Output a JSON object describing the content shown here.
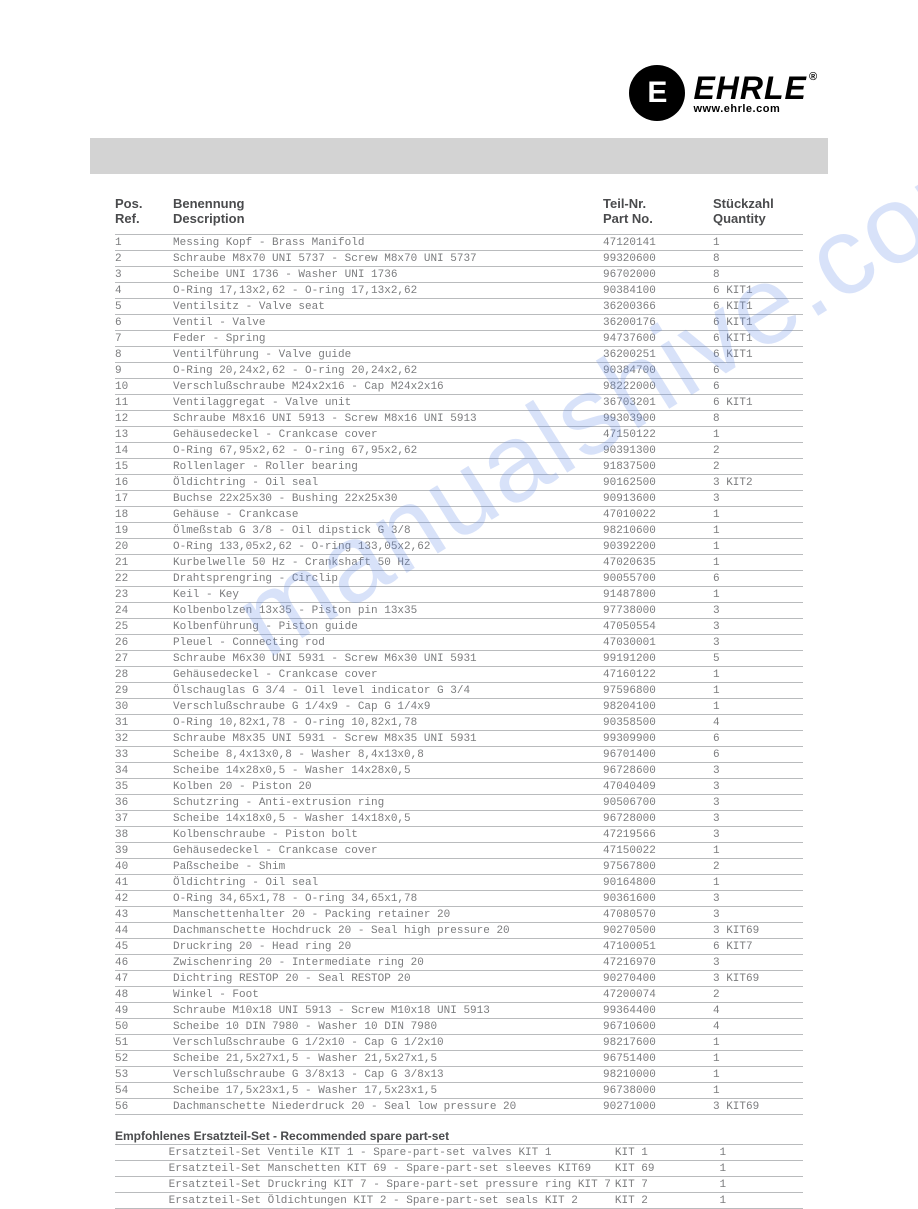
{
  "logo": {
    "name": "EHRLE",
    "url": "www.ehrle.com",
    "registered": "®"
  },
  "watermark": "manualshive.com",
  "headers": {
    "pos1": "Pos.",
    "pos2": "Ref.",
    "desc1": "Benennung",
    "desc2": "Description",
    "part1": "Teil-Nr.",
    "part2": "Part No.",
    "qty1": "Stückzahl",
    "qty2": "Quantity"
  },
  "rows": [
    {
      "pos": "1",
      "desc": "Messing Kopf - Brass Manifold",
      "part": "47120141",
      "qty": "1"
    },
    {
      "pos": "2",
      "desc": "Schraube M8x70 UNI 5737 - Screw M8x70 UNI 5737",
      "part": "99320600",
      "qty": "8"
    },
    {
      "pos": "3",
      "desc": "Scheibe UNI 1736 - Washer UNI 1736",
      "part": "96702000",
      "qty": "8"
    },
    {
      "pos": "4",
      "desc": "O-Ring 17,13x2,62 - O-ring 17,13x2,62",
      "part": "90384100",
      "qty": "6 KIT1"
    },
    {
      "pos": "5",
      "desc": "Ventilsitz - Valve seat",
      "part": "36200366",
      "qty": "6 KIT1"
    },
    {
      "pos": "6",
      "desc": "Ventil - Valve",
      "part": "36200176",
      "qty": "6 KIT1"
    },
    {
      "pos": "7",
      "desc": "Feder - Spring",
      "part": "94737600",
      "qty": "6 KIT1"
    },
    {
      "pos": "8",
      "desc": "Ventilführung - Valve guide",
      "part": "36200251",
      "qty": "6 KIT1"
    },
    {
      "pos": "9",
      "desc": "O-Ring 20,24x2,62 - O-ring 20,24x2,62",
      "part": "90384700",
      "qty": "6"
    },
    {
      "pos": "10",
      "desc": "Verschlußschraube M24x2x16 - Cap M24x2x16",
      "part": "98222000",
      "qty": "6"
    },
    {
      "pos": "11",
      "desc": "Ventilaggregat - Valve unit",
      "part": "36703201",
      "qty": "6 KIT1"
    },
    {
      "pos": "12",
      "desc": "Schraube M8x16 UNI 5913 - Screw M8x16 UNI 5913",
      "part": "99303900",
      "qty": "8"
    },
    {
      "pos": "13",
      "desc": "Gehäusedeckel - Crankcase cover",
      "part": "47150122",
      "qty": "1"
    },
    {
      "pos": "14",
      "desc": "O-Ring 67,95x2,62 - O-ring 67,95x2,62",
      "part": "90391300",
      "qty": "2"
    },
    {
      "pos": "15",
      "desc": "Rollenlager - Roller bearing",
      "part": "91837500",
      "qty": "2"
    },
    {
      "pos": "16",
      "desc": "Öldichtring - Oil seal",
      "part": "90162500",
      "qty": "3 KIT2"
    },
    {
      "pos": "17",
      "desc": "Buchse 22x25x30 - Bushing 22x25x30",
      "part": "90913600",
      "qty": "3"
    },
    {
      "pos": "18",
      "desc": "Gehäuse - Crankcase",
      "part": "47010022",
      "qty": "1"
    },
    {
      "pos": "19",
      "desc": "Ölmeßstab G 3/8 - Oil dipstick G 3/8",
      "part": "98210600",
      "qty": "1"
    },
    {
      "pos": "20",
      "desc": "O-Ring 133,05x2,62 - O-ring 133,05x2,62",
      "part": "90392200",
      "qty": "1"
    },
    {
      "pos": "21",
      "desc": "Kurbelwelle 50 Hz - Crankshaft 50 Hz",
      "part": "47020635",
      "qty": "1"
    },
    {
      "pos": "22",
      "desc": "Drahtsprengring - Circlip",
      "part": "90055700",
      "qty": "6"
    },
    {
      "pos": "23",
      "desc": "Keil - Key",
      "part": "91487800",
      "qty": "1"
    },
    {
      "pos": "24",
      "desc": "Kolbenbolzen 13x35 - Piston pin 13x35",
      "part": "97738000",
      "qty": "3"
    },
    {
      "pos": "25",
      "desc": "Kolbenführung - Piston guide",
      "part": "47050554",
      "qty": "3"
    },
    {
      "pos": "26",
      "desc": "Pleuel - Connecting rod",
      "part": "47030001",
      "qty": "3"
    },
    {
      "pos": "27",
      "desc": "Schraube M6x30 UNI 5931 - Screw M6x30 UNI 5931",
      "part": "99191200",
      "qty": "5"
    },
    {
      "pos": "28",
      "desc": "Gehäusedeckel - Crankcase cover",
      "part": "47160122",
      "qty": "1"
    },
    {
      "pos": "29",
      "desc": "Ölschauglas G 3/4 - Oil level indicator G 3/4",
      "part": "97596800",
      "qty": "1"
    },
    {
      "pos": "30",
      "desc": "Verschlußschraube G 1/4x9 - Cap G 1/4x9",
      "part": "98204100",
      "qty": "1"
    },
    {
      "pos": "31",
      "desc": "O-Ring 10,82x1,78 - O-ring 10,82x1,78",
      "part": "90358500",
      "qty": "4"
    },
    {
      "pos": "32",
      "desc": "Schraube M8x35 UNI 5931 - Screw M8x35 UNI 5931",
      "part": "99309900",
      "qty": "6"
    },
    {
      "pos": "33",
      "desc": "Scheibe 8,4x13x0,8 - Washer 8,4x13x0,8",
      "part": "96701400",
      "qty": "6"
    },
    {
      "pos": "34",
      "desc": "Scheibe 14x28x0,5 - Washer 14x28x0,5",
      "part": "96728600",
      "qty": "3"
    },
    {
      "pos": "35",
      "desc": "Kolben 20 - Piston 20",
      "part": "47040409",
      "qty": "3"
    },
    {
      "pos": "36",
      "desc": "Schutzring - Anti-extrusion ring",
      "part": "90506700",
      "qty": "3"
    },
    {
      "pos": "37",
      "desc": "Scheibe 14x18x0,5 - Washer 14x18x0,5",
      "part": "96728000",
      "qty": "3"
    },
    {
      "pos": "38",
      "desc": "Kolbenschraube - Piston bolt",
      "part": "47219566",
      "qty": "3"
    },
    {
      "pos": "39",
      "desc": "Gehäusedeckel - Crankcase cover",
      "part": "47150022",
      "qty": "1"
    },
    {
      "pos": "40",
      "desc": "Paßscheibe - Shim",
      "part": "97567800",
      "qty": "2"
    },
    {
      "pos": "41",
      "desc": "Öldichtring - Oil seal",
      "part": "90164800",
      "qty": "1"
    },
    {
      "pos": "42",
      "desc": "O-Ring 34,65x1,78 - O-ring 34,65x1,78",
      "part": "90361600",
      "qty": "3"
    },
    {
      "pos": "43",
      "desc": "Manschettenhalter 20 - Packing retainer 20",
      "part": "47080570",
      "qty": "3"
    },
    {
      "pos": "44",
      "desc": "Dachmanschette Hochdruck 20 - Seal high pressure 20",
      "part": "90270500",
      "qty": "3 KIT69"
    },
    {
      "pos": "45",
      "desc": "Druckring 20 - Head ring 20",
      "part": "47100051",
      "qty": "6 KIT7"
    },
    {
      "pos": "46",
      "desc": "Zwischenring 20 - Intermediate ring 20",
      "part": "47216970",
      "qty": "3"
    },
    {
      "pos": "47",
      "desc": "Dichtring RESTOP 20 - Seal RESTOP 20",
      "part": "90270400",
      "qty": "3 KIT69"
    },
    {
      "pos": "48",
      "desc": "Winkel - Foot",
      "part": "47200074",
      "qty": "2"
    },
    {
      "pos": "49",
      "desc": "Schraube M10x18 UNI 5913 - Screw M10x18 UNI 5913",
      "part": "99364400",
      "qty": "4"
    },
    {
      "pos": "50",
      "desc": "Scheibe 10 DIN 7980 - Washer 10 DIN 7980",
      "part": "96710600",
      "qty": "4"
    },
    {
      "pos": "51",
      "desc": "Verschlußschraube G 1/2x10 - Cap G 1/2x10",
      "part": "98217600",
      "qty": "1"
    },
    {
      "pos": "52",
      "desc": "Scheibe 21,5x27x1,5 - Washer 21,5x27x1,5",
      "part": "96751400",
      "qty": "1"
    },
    {
      "pos": "53",
      "desc": "Verschlußschraube G 3/8x13 - Cap G 3/8x13",
      "part": "98210000",
      "qty": "1"
    },
    {
      "pos": "54",
      "desc": "Scheibe 17,5x23x1,5 - Washer 17,5x23x1,5",
      "part": "96738000",
      "qty": "1"
    },
    {
      "pos": "56",
      "desc": "Dachmanschette Niederdruck 20 - Seal low pressure 20",
      "part": "90271000",
      "qty": "3 KIT69"
    }
  ],
  "spare_title": "Empfohlenes Ersatzteil-Set - Recommended spare part-set",
  "spare_rows": [
    {
      "pos": "",
      "desc": "Ersatzteil-Set Ventile KIT 1 - Spare-part-set valves KIT 1",
      "part": "KIT 1",
      "qty": "1"
    },
    {
      "pos": "",
      "desc": "Ersatzteil-Set Manschetten KIT 69 - Spare-part-set sleeves KIT69",
      "part": "KIT 69",
      "qty": "1"
    },
    {
      "pos": "",
      "desc": "Ersatzteil-Set Druckring KIT 7 - Spare-part-set pressure ring KIT 7",
      "part": "KIT 7",
      "qty": "1"
    },
    {
      "pos": "",
      "desc": "Ersatzteil-Set Öldichtungen KIT 2 - Spare-part-set seals KIT 2",
      "part": "KIT 2",
      "qty": "1"
    }
  ]
}
